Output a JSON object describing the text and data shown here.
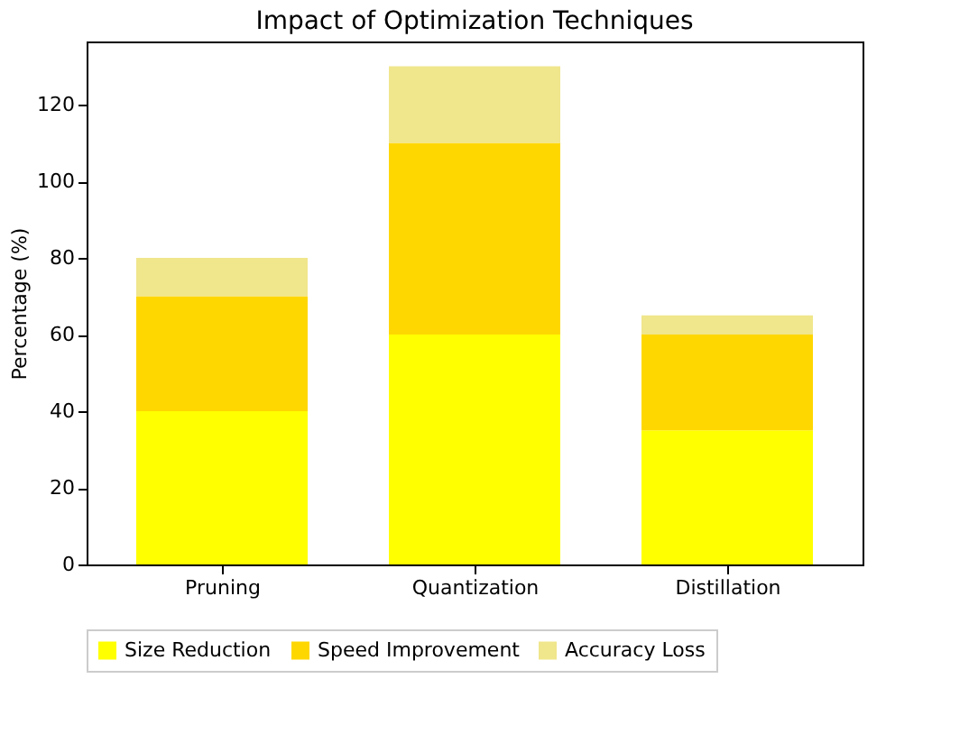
{
  "chart_data": {
    "type": "bar",
    "title": "Impact of Optimization Techniques",
    "ylabel": "Percentage (%)",
    "categories": [
      "Pruning",
      "Quantization",
      "Distillation"
    ],
    "stacked": true,
    "series": [
      {
        "name": "Size Reduction",
        "color": "#ffff00",
        "values": [
          40,
          60,
          35
        ]
      },
      {
        "name": "Speed Improvement",
        "color": "#ffd700",
        "values": [
          30,
          50,
          25
        ]
      },
      {
        "name": "Accuracy Loss",
        "color": "#f0e68c",
        "values": [
          10,
          20,
          5
        ]
      }
    ],
    "ylim": [
      0,
      136.5
    ],
    "yticks": [
      0,
      20,
      40,
      60,
      80,
      100,
      120
    ],
    "grid": false,
    "legend": "bottom"
  }
}
